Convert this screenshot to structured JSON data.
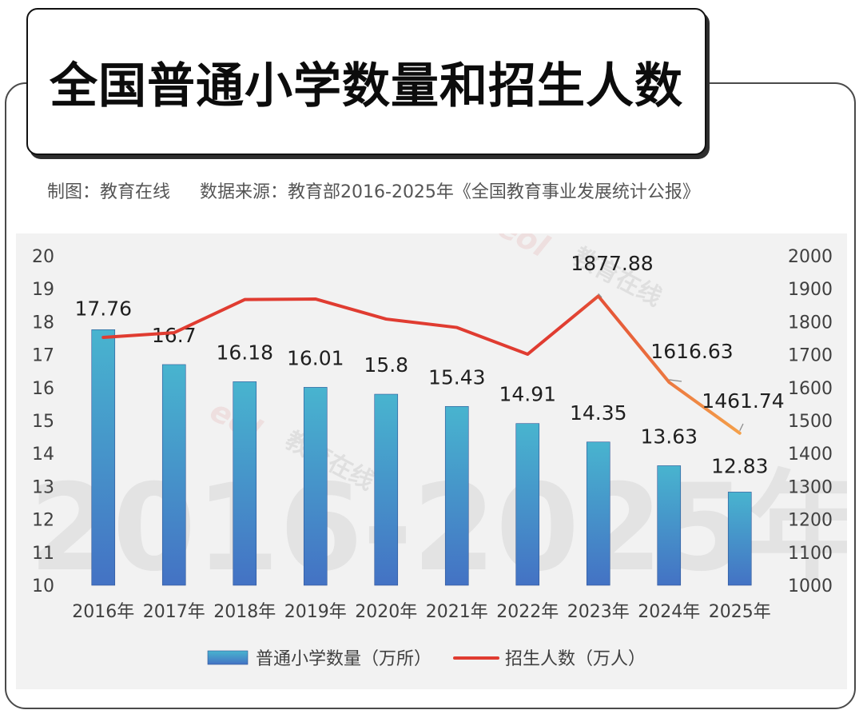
{
  "title": "全国普通小学数量和招生人数",
  "caption": {
    "maker": "制图：教育在线",
    "source": "数据来源：教育部2016-2025年《全国教育事业发展统计公报》"
  },
  "watermark": {
    "logo": "eol",
    "brand": "教育在线",
    "url": "w w w . e o l . c n",
    "big": "2016-2025年"
  },
  "colors": {
    "bar_top": "#48b4cf",
    "bar_bottom": "#4472c4",
    "line_start": "#e03c31",
    "line_end": "#f4a04a"
  },
  "chart_data": {
    "type": "bar+line",
    "categories": [
      "2016年",
      "2017年",
      "2018年",
      "2019年",
      "2020年",
      "2021年",
      "2022年",
      "2023年",
      "2024年",
      "2025年"
    ],
    "series": [
      {
        "name": "普通小学数量（万所）",
        "type": "bar",
        "axis": "left",
        "values": [
          17.76,
          16.7,
          16.18,
          16.01,
          15.8,
          15.43,
          14.91,
          14.35,
          13.63,
          12.83
        ],
        "labels": [
          "17.76",
          "16.7",
          "16.18",
          "16.01",
          "15.8",
          "15.43",
          "14.91",
          "14.35",
          "13.63",
          "12.83"
        ]
      },
      {
        "name": "招生人数（万人）",
        "type": "line",
        "axis": "right",
        "values": [
          1752.5,
          1766.6,
          1867.3,
          1869.0,
          1808.1,
          1782.6,
          1701.4,
          1877.88,
          1616.63,
          1461.74
        ],
        "labels": [
          "",
          "",
          "",
          "",
          "",
          "",
          "",
          "1877.88",
          "1616.63",
          "1461.74"
        ]
      }
    ],
    "left_axis": {
      "min": 10,
      "max": 20,
      "ticks": [
        "10",
        "11",
        "12",
        "13",
        "14",
        "15",
        "16",
        "17",
        "18",
        "19",
        "20"
      ]
    },
    "right_axis": {
      "min": 1000,
      "max": 2000,
      "ticks": [
        "1000",
        "1100",
        "1200",
        "1300",
        "1400",
        "1500",
        "1600",
        "1700",
        "1800",
        "1900",
        "2000"
      ]
    },
    "grid": false,
    "legend": "bottom"
  }
}
